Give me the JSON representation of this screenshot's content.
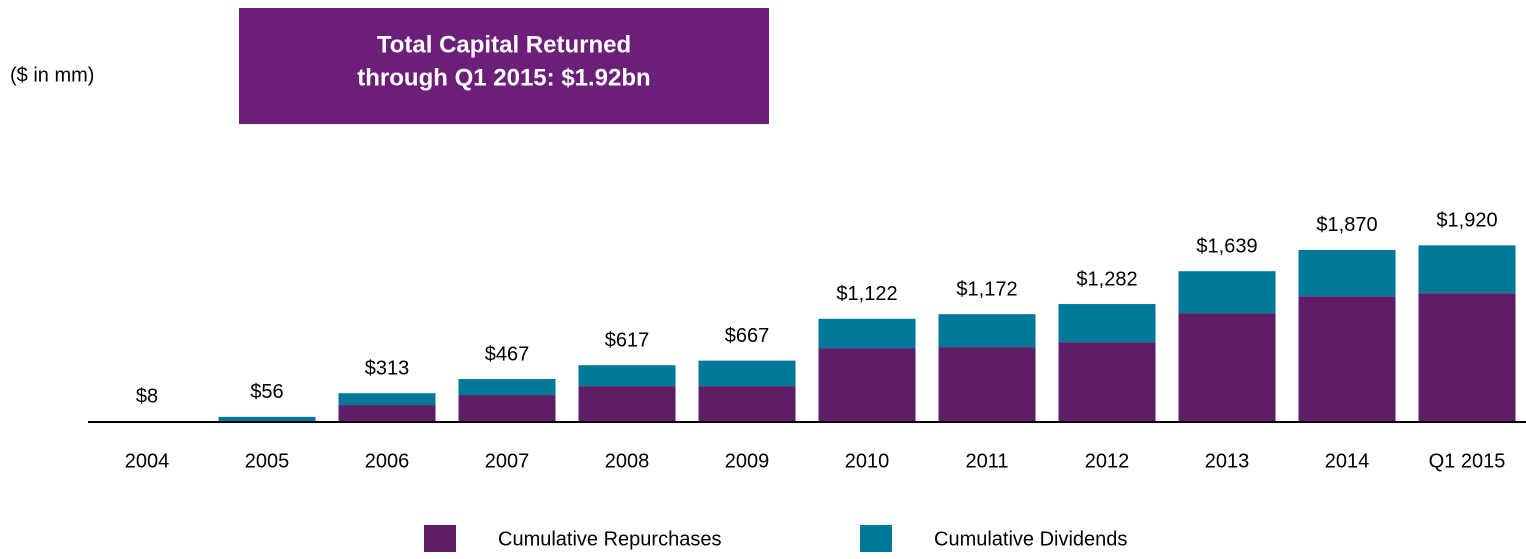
{
  "chart_data": {
    "type": "stacked_bar",
    "title": [
      "Total Capital Returned",
      "through Q1 2015: $1.92bn"
    ],
    "unit_note": "($ in mm)",
    "categories": [
      "2004",
      "2005",
      "2006",
      "2007",
      "2008",
      "2009",
      "2010",
      "2011",
      "2012",
      "2013",
      "2014",
      "Q1 2015"
    ],
    "series": [
      {
        "name": "Cumulative Repurchases",
        "color": "#5f1d66",
        "values": [
          0,
          0,
          184,
          293,
          390,
          390,
          803,
          814,
          868,
          1183,
          1367,
          1400
        ]
      },
      {
        "name": "Cumulative Dividends",
        "color": "#00789a",
        "values": [
          8,
          56,
          129,
          174,
          227,
          277,
          319,
          358,
          414,
          456,
          503,
          520
        ]
      }
    ],
    "totals": [
      8,
      56,
      313,
      467,
      617,
      667,
      1122,
      1172,
      1282,
      1639,
      1870,
      1920
    ],
    "total_labels": [
      "$8",
      "$56",
      "$313",
      "$467",
      "$617",
      "$667",
      "$1,122",
      "$1,172",
      "$1,282",
      "$1,639",
      "$1,870",
      "$1,920"
    ],
    "ylim": [
      0,
      2000
    ]
  }
}
